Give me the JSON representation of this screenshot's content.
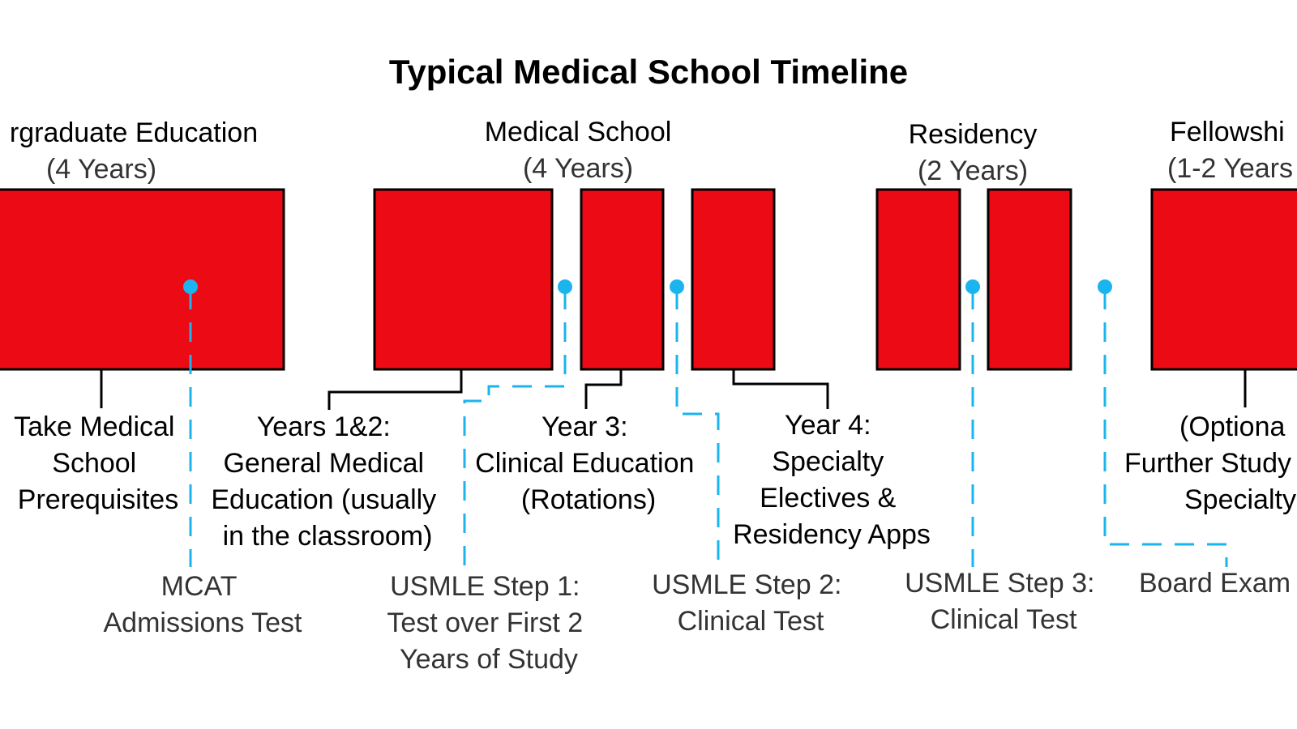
{
  "colors": {
    "block_fill": "#ec0a14",
    "exam_marker": "#1ab4ee",
    "line": "#000000"
  },
  "diagram": {
    "title": "Typical Medical School Timeline",
    "phases": [
      {
        "name": "rgraduate Education",
        "duration": "(4 Years)"
      },
      {
        "name": "Medical School",
        "duration": "(4 Years)"
      },
      {
        "name": "Residency",
        "duration": "(2 Years)"
      },
      {
        "name": "Fellowshi",
        "duration": "(1-2 Years"
      }
    ],
    "descriptions": [
      {
        "lines": [
          "Take Medical",
          "School",
          "Prerequisites"
        ]
      },
      {
        "lines": [
          "Years 1&2:",
          "General Medical",
          "Education (usually",
          "in the classroom)"
        ]
      },
      {
        "lines": [
          "Year 3:",
          "Clinical Education",
          "(Rotations)"
        ]
      },
      {
        "lines": [
          "Year 4:",
          "Specialty",
          "Electives &",
          "Residency Apps"
        ]
      },
      {
        "lines": [
          "(Optiona",
          "Further Study",
          "Specialty"
        ]
      }
    ],
    "exams": [
      {
        "lines": [
          "MCAT",
          "Admissions Test"
        ]
      },
      {
        "lines": [
          "USMLE Step 1:",
          "Test over First 2",
          "Years of Study"
        ]
      },
      {
        "lines": [
          "USMLE Step 2:",
          "Clinical Test"
        ]
      },
      {
        "lines": [
          "USMLE Step 3:",
          "Clinical Test"
        ]
      },
      {
        "lines": [
          "Board Exam"
        ]
      }
    ]
  }
}
